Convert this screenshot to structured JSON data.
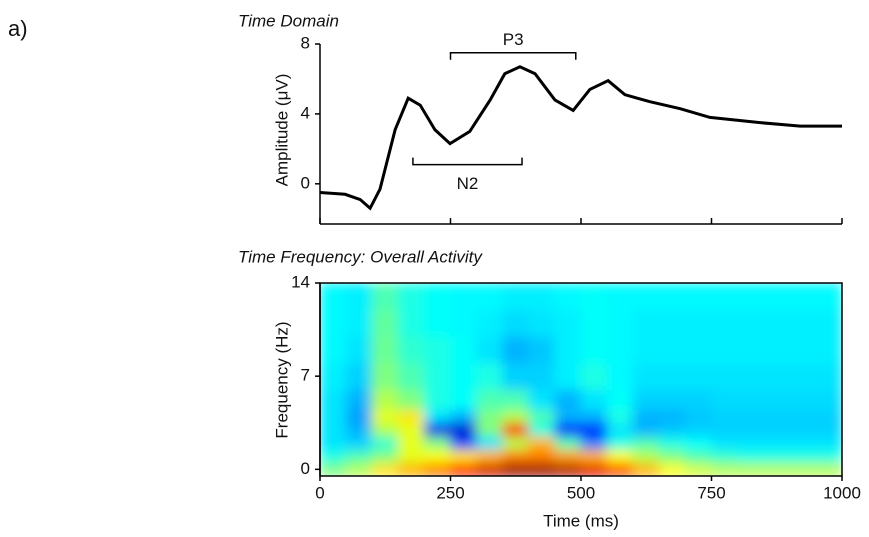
{
  "panel_label": "a)",
  "chart_data": [
    {
      "type": "line",
      "title": "Time Domain",
      "y_label": "Amplitude (μV)",
      "color": "#000000",
      "x": [
        0,
        48,
        77,
        96,
        115,
        144,
        169,
        192,
        220,
        249,
        287,
        326,
        354,
        383,
        412,
        450,
        485,
        517,
        552,
        584,
        632,
        690,
        747,
        843,
        920,
        1000
      ],
      "values": [
        -0.5,
        -0.6,
        -0.9,
        -1.4,
        -0.3,
        3.1,
        4.9,
        4.5,
        3.1,
        2.3,
        3.0,
        4.8,
        6.3,
        6.7,
        6.3,
        4.8,
        4.2,
        5.4,
        5.9,
        5.1,
        4.7,
        4.3,
        3.8,
        3.5,
        3.3,
        3.3
      ],
      "xlim": [
        0,
        1000
      ],
      "xticks": [
        0,
        250,
        500,
        750,
        1000
      ],
      "ylim": [
        -2.3,
        8
      ],
      "yticks": [
        0,
        4,
        8
      ],
      "annotations": [
        {
          "text": "P3",
          "x": [
            250,
            490
          ],
          "y": 7.5
        },
        {
          "text": "N2",
          "x": [
            178,
            387
          ],
          "y": 1.1
        }
      ]
    },
    {
      "type": "heatmap",
      "title": "Time Frequency: Overall Activity",
      "x_label": "Time (ms)",
      "y_label": "Frequency (Hz)",
      "colormap": "jet",
      "xbins": [
        0,
        50,
        100,
        150,
        200,
        250,
        300,
        350,
        400,
        450,
        500,
        550,
        600,
        650,
        700,
        750,
        800,
        850,
        900,
        950,
        1000
      ],
      "ybins": [
        -0.5,
        0.5,
        1.5,
        2.5,
        3.5,
        4.5,
        6,
        8,
        10,
        12,
        14
      ],
      "z": [
        [
          0.5,
          0.55,
          0.65,
          0.7,
          0.75,
          0.85,
          0.92,
          0.97,
          0.97,
          0.95,
          0.9,
          0.8,
          0.7,
          0.62,
          0.58,
          0.55,
          0.55,
          0.55,
          0.55,
          0.55
        ],
        [
          0.4,
          0.45,
          0.5,
          0.6,
          0.62,
          0.65,
          0.7,
          0.75,
          0.75,
          0.72,
          0.7,
          0.62,
          0.55,
          0.5,
          0.45,
          0.42,
          0.4,
          0.4,
          0.4,
          0.4
        ],
        [
          0.35,
          0.33,
          0.42,
          0.6,
          0.5,
          0.2,
          0.35,
          0.55,
          0.7,
          0.45,
          0.25,
          0.4,
          0.45,
          0.4,
          0.38,
          0.35,
          0.35,
          0.35,
          0.35,
          0.35
        ],
        [
          0.35,
          0.3,
          0.55,
          0.6,
          0.1,
          0.08,
          0.5,
          0.85,
          0.4,
          0.12,
          0.15,
          0.35,
          0.3,
          0.32,
          0.33,
          0.33,
          0.33,
          0.33,
          0.33,
          0.33
        ],
        [
          0.35,
          0.28,
          0.6,
          0.65,
          0.35,
          0.3,
          0.5,
          0.55,
          0.45,
          0.3,
          0.3,
          0.4,
          0.3,
          0.3,
          0.32,
          0.33,
          0.33,
          0.33,
          0.33,
          0.33
        ],
        [
          0.35,
          0.3,
          0.55,
          0.5,
          0.4,
          0.38,
          0.45,
          0.45,
          0.35,
          0.3,
          0.35,
          0.38,
          0.33,
          0.33,
          0.33,
          0.34,
          0.34,
          0.34,
          0.34,
          0.34
        ],
        [
          0.36,
          0.33,
          0.5,
          0.45,
          0.4,
          0.38,
          0.4,
          0.33,
          0.33,
          0.36,
          0.4,
          0.37,
          0.35,
          0.35,
          0.35,
          0.35,
          0.35,
          0.35,
          0.35,
          0.35
        ],
        [
          0.37,
          0.35,
          0.48,
          0.42,
          0.4,
          0.38,
          0.35,
          0.3,
          0.32,
          0.36,
          0.38,
          0.37,
          0.36,
          0.36,
          0.36,
          0.36,
          0.36,
          0.36,
          0.36,
          0.36
        ],
        [
          0.37,
          0.36,
          0.47,
          0.4,
          0.38,
          0.37,
          0.36,
          0.34,
          0.35,
          0.36,
          0.38,
          0.37,
          0.36,
          0.36,
          0.36,
          0.36,
          0.36,
          0.36,
          0.36,
          0.36
        ],
        [
          0.37,
          0.36,
          0.45,
          0.4,
          0.38,
          0.37,
          0.37,
          0.36,
          0.36,
          0.37,
          0.38,
          0.37,
          0.37,
          0.37,
          0.37,
          0.37,
          0.37,
          0.37,
          0.37,
          0.37
        ]
      ],
      "xlim": [
        0,
        1000
      ],
      "xticks": [
        0,
        250,
        500,
        750,
        1000
      ],
      "ylim": [
        -0.5,
        14
      ],
      "yticks": [
        0,
        7,
        14
      ]
    }
  ]
}
